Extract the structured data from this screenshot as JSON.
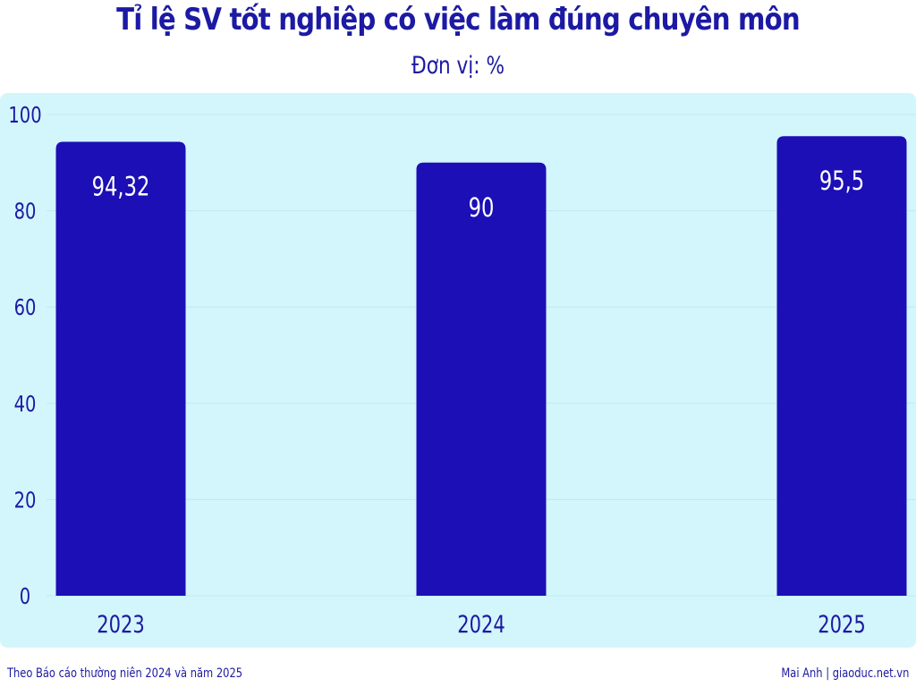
{
  "header": {
    "title": "Tỉ lệ SV tốt nghiệp có việc làm đúng chuyên môn",
    "subtitle": "Đơn vị: %"
  },
  "footer": {
    "source": "Theo Báo cáo thường niên 2024 và năm 2025",
    "credit": "Mai Anh | giaoduc.net.vn"
  },
  "colors": {
    "bar": "#1c0fb5",
    "text": "#1c1aa3",
    "panel": "#d3f6fc",
    "value_label": "#ffffff"
  },
  "chart_data": {
    "type": "bar",
    "title": "Tỉ lệ SV tốt nghiệp có việc làm đúng chuyên môn",
    "subtitle": "Đơn vị: %",
    "xlabel": "",
    "ylabel": "",
    "categories": [
      "2023",
      "2024",
      "2025"
    ],
    "values": [
      94.32,
      90,
      95.5
    ],
    "value_labels": [
      "94,32",
      "90",
      "95,5"
    ],
    "ylim": [
      0,
      100
    ],
    "yticks": [
      0,
      20,
      40,
      60,
      80,
      100
    ],
    "ytick_labels": [
      "0",
      "20",
      "40",
      "60",
      "80",
      "100"
    ],
    "grid": true,
    "legend": "none"
  }
}
